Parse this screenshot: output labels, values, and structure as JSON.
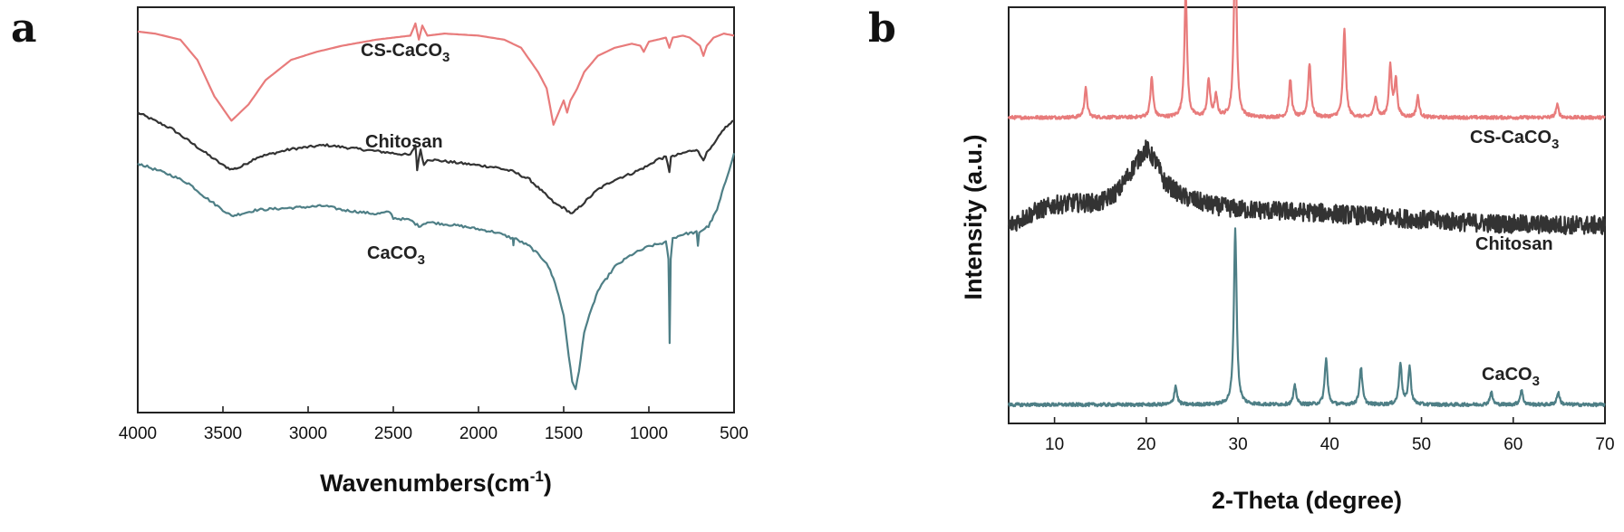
{
  "panels": [
    {
      "letter": "a",
      "xlabel_main": "Wavenumbers(cm",
      "xlabel_sup": "-1",
      "xlabel_tail": ")",
      "ylabel": ""
    },
    {
      "letter": "b",
      "xlabel": "2-Theta (degree)",
      "ylabel": "Intensity (a.u.)"
    }
  ],
  "series_labels": {
    "cs_caco3": {
      "base": "CS-CaCO",
      "sub": "3"
    },
    "chitosan": {
      "base": "Chitosan"
    },
    "caco3": {
      "base": "CaCO",
      "sub": "3"
    }
  },
  "colors": {
    "cs_caco3": "#e87b7b",
    "chitosan": "#333333",
    "caco3": "#4e7f86"
  },
  "chart_data": [
    {
      "type": "line",
      "panel": "a",
      "title": "",
      "xlabel": "Wavenumbers(cm-1)",
      "ylabel": "",
      "xlim": [
        4000,
        500
      ],
      "x_reversed": true,
      "x_ticks": [
        4000,
        3500,
        3000,
        2500,
        2000,
        1500,
        1000,
        500
      ],
      "y_ticks_labeled": false,
      "series": [
        {
          "name": "CS-CaCO3",
          "points": [
            [
              4000,
              0.94
            ],
            [
              3900,
              0.935
            ],
            [
              3750,
              0.92
            ],
            [
              3650,
              0.87
            ],
            [
              3550,
              0.78
            ],
            [
              3450,
              0.72
            ],
            [
              3350,
              0.76
            ],
            [
              3250,
              0.82
            ],
            [
              3100,
              0.87
            ],
            [
              2950,
              0.89
            ],
            [
              2800,
              0.905
            ],
            [
              2600,
              0.92
            ],
            [
              2400,
              0.93
            ],
            [
              2370,
              0.96
            ],
            [
              2350,
              0.92
            ],
            [
              2330,
              0.955
            ],
            [
              2300,
              0.93
            ],
            [
              2200,
              0.935
            ],
            [
              2000,
              0.93
            ],
            [
              1850,
              0.92
            ],
            [
              1750,
              0.9
            ],
            [
              1700,
              0.87
            ],
            [
              1650,
              0.84
            ],
            [
              1600,
              0.8
            ],
            [
              1560,
              0.71
            ],
            [
              1530,
              0.74
            ],
            [
              1500,
              0.77
            ],
            [
              1480,
              0.74
            ],
            [
              1460,
              0.77
            ],
            [
              1420,
              0.8
            ],
            [
              1380,
              0.84
            ],
            [
              1300,
              0.88
            ],
            [
              1200,
              0.9
            ],
            [
              1100,
              0.91
            ],
            [
              1050,
              0.905
            ],
            [
              1030,
              0.89
            ],
            [
              1000,
              0.915
            ],
            [
              950,
              0.92
            ],
            [
              900,
              0.925
            ],
            [
              880,
              0.9
            ],
            [
              860,
              0.925
            ],
            [
              800,
              0.93
            ],
            [
              760,
              0.925
            ],
            [
              700,
              0.905
            ],
            [
              680,
              0.88
            ],
            [
              660,
              0.905
            ],
            [
              620,
              0.925
            ],
            [
              560,
              0.935
            ],
            [
              500,
              0.93
            ]
          ]
        },
        {
          "name": "Chitosan",
          "points": [
            [
              4000,
              0.74
            ],
            [
              3900,
              0.72
            ],
            [
              3800,
              0.7
            ],
            [
              3700,
              0.67
            ],
            [
              3600,
              0.64
            ],
            [
              3500,
              0.61
            ],
            [
              3450,
              0.6
            ],
            [
              3400,
              0.605
            ],
            [
              3300,
              0.63
            ],
            [
              3100,
              0.65
            ],
            [
              2900,
              0.66
            ],
            [
              2800,
              0.655
            ],
            [
              2600,
              0.645
            ],
            [
              2400,
              0.635
            ],
            [
              2370,
              0.66
            ],
            [
              2360,
              0.6
            ],
            [
              2340,
              0.65
            ],
            [
              2320,
              0.61
            ],
            [
              2300,
              0.625
            ],
            [
              2100,
              0.615
            ],
            [
              1900,
              0.605
            ],
            [
              1800,
              0.595
            ],
            [
              1700,
              0.575
            ],
            [
              1650,
              0.555
            ],
            [
              1600,
              0.535
            ],
            [
              1550,
              0.515
            ],
            [
              1500,
              0.505
            ],
            [
              1450,
              0.49
            ],
            [
              1400,
              0.51
            ],
            [
              1300,
              0.55
            ],
            [
              1200,
              0.575
            ],
            [
              1100,
              0.59
            ],
            [
              1000,
              0.61
            ],
            [
              950,
              0.625
            ],
            [
              900,
              0.63
            ],
            [
              880,
              0.595
            ],
            [
              870,
              0.63
            ],
            [
              800,
              0.64
            ],
            [
              720,
              0.65
            ],
            [
              700,
              0.635
            ],
            [
              680,
              0.625
            ],
            [
              660,
              0.64
            ],
            [
              620,
              0.66
            ],
            [
              560,
              0.7
            ],
            [
              500,
              0.72
            ]
          ]
        },
        {
          "name": "CaCO3",
          "points": [
            [
              4000,
              0.615
            ],
            [
              3900,
              0.6
            ],
            [
              3800,
              0.585
            ],
            [
              3700,
              0.565
            ],
            [
              3600,
              0.53
            ],
            [
              3500,
              0.5
            ],
            [
              3450,
              0.485
            ],
            [
              3400,
              0.49
            ],
            [
              3300,
              0.5
            ],
            [
              3100,
              0.505
            ],
            [
              2900,
              0.51
            ],
            [
              2800,
              0.5
            ],
            [
              2600,
              0.49
            ],
            [
              2520,
              0.495
            ],
            [
              2500,
              0.48
            ],
            [
              2400,
              0.475
            ],
            [
              2350,
              0.46
            ],
            [
              2300,
              0.47
            ],
            [
              2100,
              0.46
            ],
            [
              1900,
              0.445
            ],
            [
              1800,
              0.43
            ],
            [
              1795,
              0.415
            ],
            [
              1790,
              0.43
            ],
            [
              1700,
              0.41
            ],
            [
              1600,
              0.37
            ],
            [
              1550,
              0.32
            ],
            [
              1500,
              0.24
            ],
            [
              1470,
              0.14
            ],
            [
              1450,
              0.075
            ],
            [
              1430,
              0.06
            ],
            [
              1410,
              0.1
            ],
            [
              1380,
              0.2
            ],
            [
              1300,
              0.3
            ],
            [
              1200,
              0.36
            ],
            [
              1100,
              0.39
            ],
            [
              1000,
              0.41
            ],
            [
              900,
              0.42
            ],
            [
              885,
              0.38
            ],
            [
              878,
              0.17
            ],
            [
              872,
              0.38
            ],
            [
              860,
              0.43
            ],
            [
              800,
              0.44
            ],
            [
              720,
              0.445
            ],
            [
              712,
              0.41
            ],
            [
              705,
              0.445
            ],
            [
              650,
              0.46
            ],
            [
              600,
              0.5
            ],
            [
              550,
              0.57
            ],
            [
              500,
              0.64
            ]
          ]
        }
      ]
    },
    {
      "type": "line",
      "panel": "b",
      "title": "",
      "xlabel": "2-Theta (degree)",
      "ylabel": "Intensity (a.u.)",
      "xlim": [
        5,
        70
      ],
      "x_ticks": [
        10,
        20,
        30,
        40,
        50,
        60,
        70
      ],
      "y_ticks_labeled": false,
      "series": [
        {
          "name": "CS-CaCO3",
          "baseline": 0.735,
          "peaks": [
            [
              13.4,
              0.07
            ],
            [
              20.6,
              0.095
            ],
            [
              24.3,
              0.3
            ],
            [
              26.8,
              0.09
            ],
            [
              27.6,
              0.05
            ],
            [
              29.7,
              0.43
            ],
            [
              35.7,
              0.09
            ],
            [
              37.8,
              0.13
            ],
            [
              41.6,
              0.21
            ],
            [
              45.0,
              0.05
            ],
            [
              46.6,
              0.12
            ],
            [
              47.2,
              0.09
            ],
            [
              49.6,
              0.05
            ],
            [
              64.8,
              0.03
            ]
          ]
        },
        {
          "name": "Chitosan",
          "profile": [
            [
              5,
              0.475
            ],
            [
              8,
              0.51
            ],
            [
              10,
              0.525
            ],
            [
              12,
              0.53
            ],
            [
              15,
              0.53
            ],
            [
              17,
              0.56
            ],
            [
              19,
              0.63
            ],
            [
              20,
              0.66
            ],
            [
              21,
              0.63
            ],
            [
              22,
              0.58
            ],
            [
              24,
              0.545
            ],
            [
              27,
              0.525
            ],
            [
              30,
              0.515
            ],
            [
              35,
              0.51
            ],
            [
              40,
              0.505
            ],
            [
              45,
              0.497
            ],
            [
              50,
              0.49
            ],
            [
              55,
              0.483
            ],
            [
              60,
              0.479
            ],
            [
              65,
              0.477
            ],
            [
              70,
              0.476
            ]
          ]
        },
        {
          "name": "CaCO3",
          "baseline": 0.045,
          "peaks": [
            [
              23.2,
              0.045
            ],
            [
              29.7,
              0.42
            ],
            [
              36.2,
              0.045
            ],
            [
              39.6,
              0.11
            ],
            [
              43.4,
              0.09
            ],
            [
              47.7,
              0.1
            ],
            [
              48.7,
              0.09
            ],
            [
              57.6,
              0.03
            ],
            [
              60.9,
              0.035
            ],
            [
              64.9,
              0.03
            ]
          ]
        }
      ]
    }
  ]
}
